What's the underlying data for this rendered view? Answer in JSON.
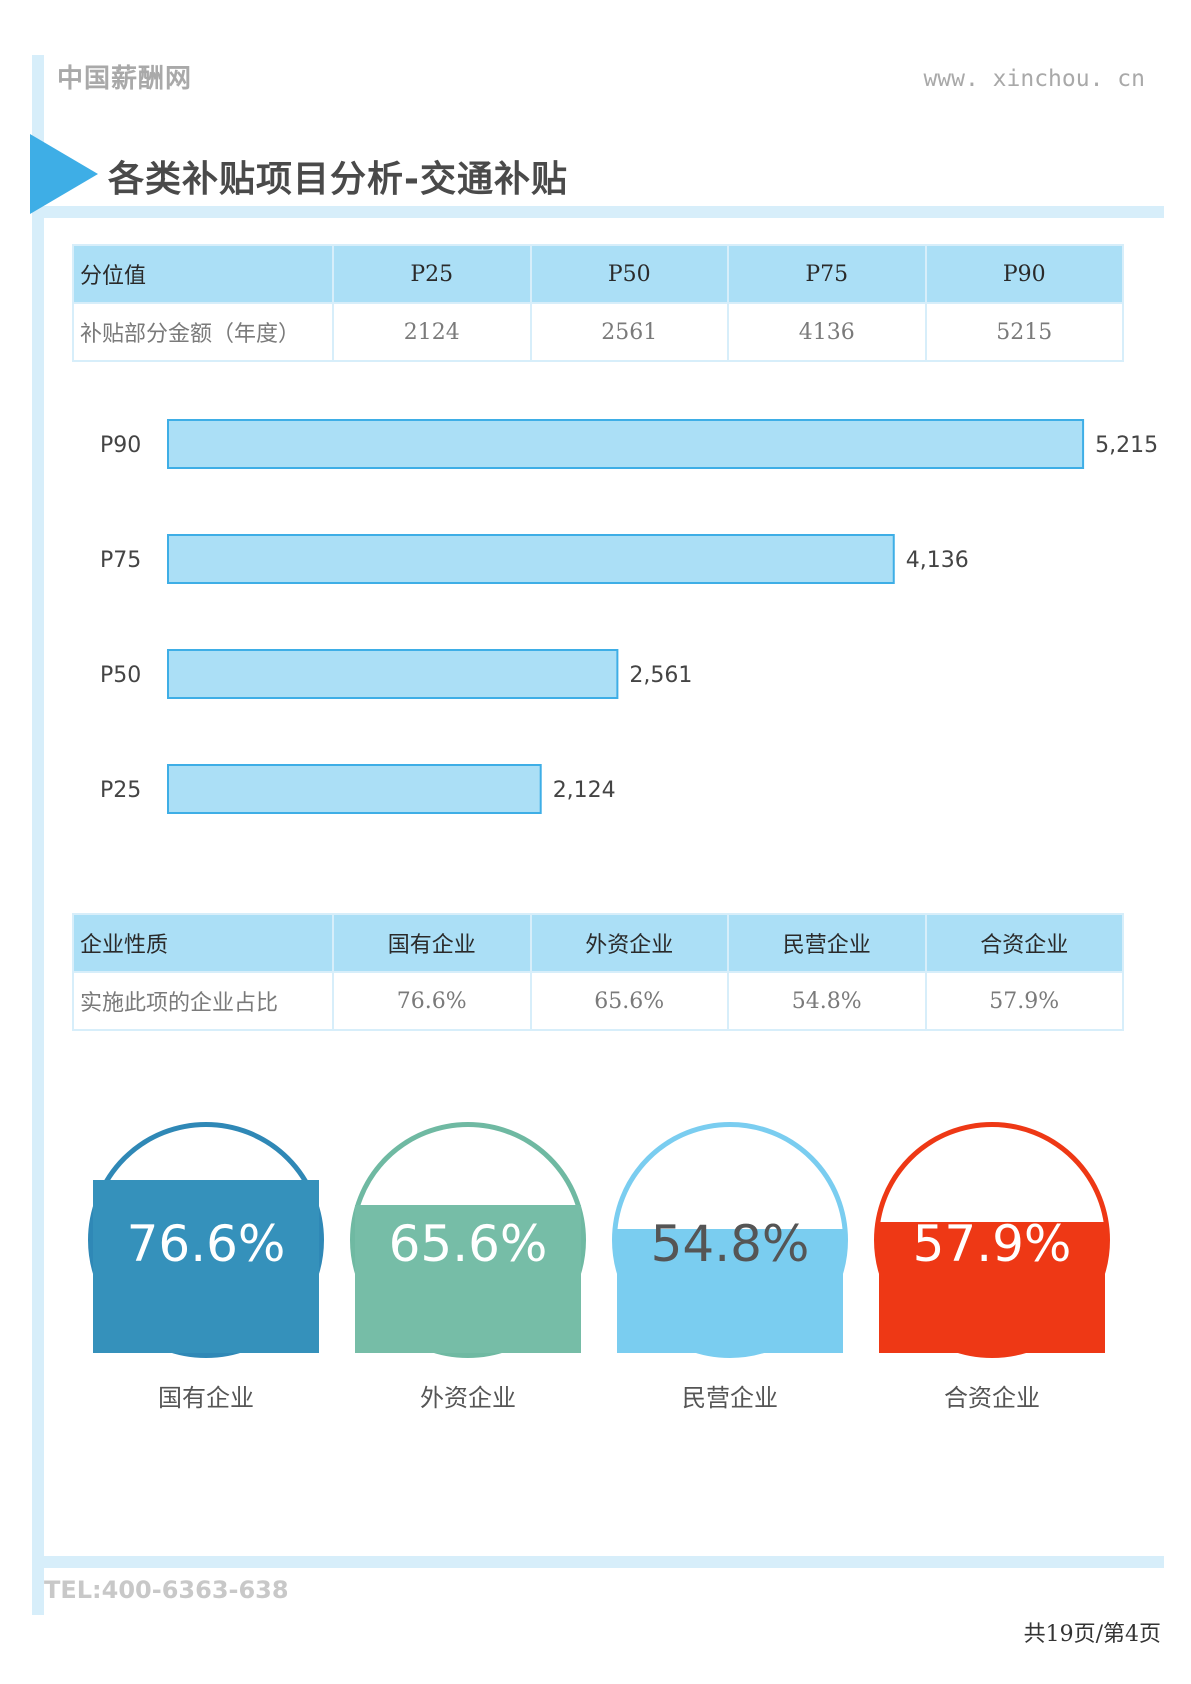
{
  "header": {
    "brand": "中国薪酬网",
    "site": "www. xinchou. cn",
    "title": "各类补贴项目分析-交通补贴"
  },
  "percentile_table": {
    "headers": [
      "分位值",
      "P25",
      "P50",
      "P75",
      "P90"
    ],
    "row_label": "补贴部分金额（年度）",
    "values": [
      "2124",
      "2561",
      "4136",
      "5215"
    ]
  },
  "chart_data": {
    "type": "bar",
    "orientation": "horizontal",
    "categories": [
      "P90",
      "P75",
      "P50",
      "P25"
    ],
    "values": [
      5215,
      4136,
      2561,
      2124
    ],
    "value_labels": [
      "5,215",
      "4,136",
      "2,561",
      "2,124"
    ],
    "title": "",
    "xlim": [
      0,
      5300
    ],
    "grid": false,
    "colors": {
      "bar_fill": "#abdff6",
      "bar_stroke": "#3eaee6"
    }
  },
  "enterprise_table": {
    "headers": [
      "企业性质",
      "国有企业",
      "外资企业",
      "民营企业",
      "合资企业"
    ],
    "row_label": "实施此项的企业占比",
    "values": [
      "76.6%",
      "65.6%",
      "54.8%",
      "57.9%"
    ]
  },
  "gauges": [
    {
      "label": "国有企业",
      "percent": 76.6,
      "text": "76.6%",
      "color": "#3591bb",
      "border": "#2f88b6",
      "text_color": "#ffffff"
    },
    {
      "label": "外资企业",
      "percent": 65.6,
      "text": "65.6%",
      "color": "#76bda7",
      "border": "#6fb9a2",
      "text_color": "#ffffff"
    },
    {
      "label": "民营企业",
      "percent": 54.8,
      "text": "54.8%",
      "color": "#7acdf0",
      "border": "#7acdf0",
      "text_color": "#555555"
    },
    {
      "label": "合资企业",
      "percent": 57.9,
      "text": "57.9%",
      "color": "#ee3815",
      "border": "#ee3815",
      "text_color": "#ffffff"
    }
  ],
  "footer": {
    "tel": "TEL:400-6363-638",
    "pager": "共19页/第4页"
  }
}
